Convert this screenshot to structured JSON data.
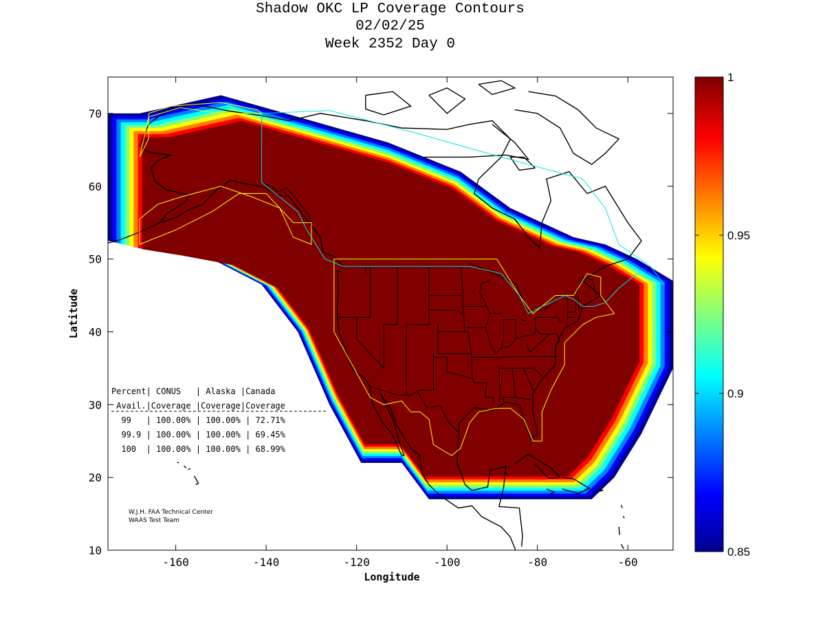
{
  "title": {
    "line1": "Shadow OKC LP Coverage Contours",
    "line2": "02/02/25",
    "line3": "Week 2352 Day 0"
  },
  "axes": {
    "xlabel": "Longitude",
    "ylabel": "Latitude",
    "xlim": [
      -175,
      -50
    ],
    "ylim": [
      10,
      75
    ],
    "xticks": [
      "-160",
      "-140",
      "-120",
      "-100",
      "-80",
      "-60"
    ],
    "yticks": [
      "70",
      "60",
      "50",
      "40",
      "30",
      "20",
      "10"
    ]
  },
  "colorbar": {
    "min": 0.85,
    "max": 1,
    "colormap": "jet",
    "tick_labels": [
      "1",
      "0.95",
      "0.9",
      "0.85"
    ]
  },
  "stats_table": {
    "header1": "Percent| CONUS   | Alaska |Canada",
    "header2": " Avail.|Coverage |Coverage|Coverage",
    "rows": [
      "  99   | 100.00% | 100.00% | 72.71%",
      "  99.9 | 100.00% | 100.00% | 69.45%",
      "  100  | 100.00% | 100.00% | 68.99%"
    ]
  },
  "credits": {
    "line1": "W.J.H. FAA Technical Center",
    "line2": "WAAS Test Team"
  },
  "chart_data": {
    "type": "heatmap",
    "title": "Shadow OKC LP Coverage Contours",
    "xlabel": "Longitude",
    "ylabel": "Latitude",
    "xlim": [
      -175,
      -50
    ],
    "ylim": [
      10,
      75
    ],
    "colorbar_range": [
      0.85,
      1
    ],
    "coverage": [
      {
        "percent_avail": "99",
        "conus": "100.00%",
        "alaska": "100.00%",
        "canada": "72.71%"
      },
      {
        "percent_avail": "99.9",
        "conus": "100.00%",
        "alaska": "100.00%",
        "canada": "69.45%"
      },
      {
        "percent_avail": "100",
        "conus": "100.00%",
        "alaska": "100.00%",
        "canada": "68.99%"
      }
    ],
    "service_boundary": [
      [
        -175,
        70
      ],
      [
        -168,
        70
      ],
      [
        -150,
        72.5
      ],
      [
        -130,
        69
      ],
      [
        -113,
        66
      ],
      [
        -97,
        62
      ],
      [
        -86,
        57
      ],
      [
        -79,
        55
      ],
      [
        -72,
        53
      ],
      [
        -65,
        52
      ],
      [
        -58,
        50
      ],
      [
        -50,
        47
      ],
      [
        -50,
        35
      ],
      [
        -57,
        26
      ],
      [
        -63,
        20
      ],
      [
        -68,
        17
      ],
      [
        -104,
        17
      ],
      [
        -110,
        22
      ],
      [
        -119,
        22
      ],
      [
        -126,
        30
      ],
      [
        -133,
        40
      ],
      [
        -141,
        46.5
      ],
      [
        -152,
        50
      ],
      [
        -165,
        51.5
      ],
      [
        -175,
        52.5
      ]
    ]
  }
}
